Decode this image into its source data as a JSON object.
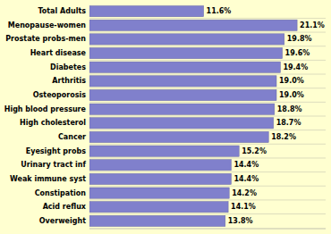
{
  "chart_data": {
    "type": "bar",
    "orientation": "horizontal",
    "categories": [
      "Total Adults",
      "Menopause-women",
      "Prostate probs-men",
      "Heart disease",
      "Diabetes",
      "Arthritis",
      "Osteoporosis",
      "High blood pressure",
      "High cholesterol",
      "Cancer",
      "Eyesight probs",
      "Urinary tract inf",
      "Weak immune syst",
      "Constipation",
      "Acid reflux",
      "Overweight"
    ],
    "values": [
      11.6,
      21.1,
      19.8,
      19.6,
      19.4,
      19.0,
      19.0,
      18.8,
      18.7,
      18.2,
      15.2,
      14.4,
      14.4,
      14.2,
      14.1,
      13.8
    ],
    "value_labels": [
      "11.6%",
      "21.1%",
      "19.8%",
      "19.6%",
      "19.4%",
      "19.0%",
      "19.0%",
      "18.8%",
      "18.7%",
      "18.2%",
      "15.2%",
      "14.4%",
      "14.4%",
      "14.2%",
      "14.1%",
      "13.8%"
    ],
    "color": "#8080cc",
    "xlim": [
      0,
      24
    ],
    "data_labels": true,
    "tick_labels": "y",
    "grid": false
  }
}
